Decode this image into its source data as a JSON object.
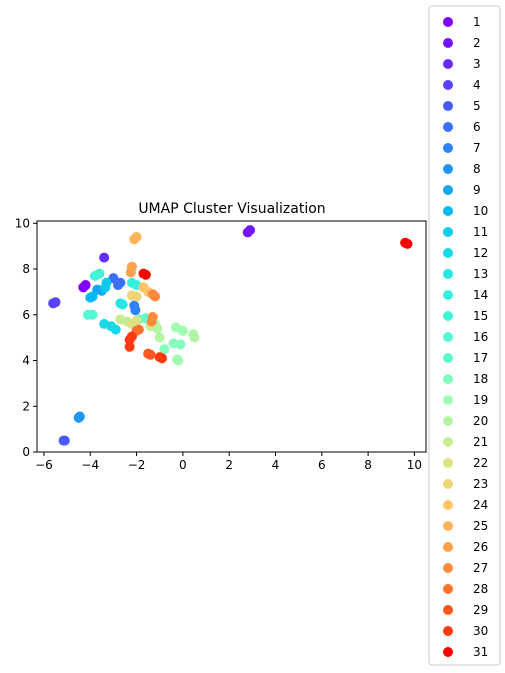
{
  "chart_data": {
    "type": "scatter",
    "title": "UMAP Cluster Visualization",
    "xlabel": "",
    "ylabel": "",
    "xlim": [
      -6.3,
      10.5
    ],
    "ylim": [
      0,
      10.1
    ],
    "xticks": [
      -6,
      -4,
      -2,
      0,
      2,
      4,
      6,
      8,
      10
    ],
    "yticks": [
      0,
      2,
      4,
      6,
      8,
      10
    ],
    "grid": false,
    "legend_placement": "right",
    "series": [
      {
        "name": "1",
        "color": "#8000ff",
        "points": [
          [
            -4.3,
            7.2
          ],
          [
            -4.2,
            7.3
          ]
        ]
      },
      {
        "name": "2",
        "color": "#7216ff",
        "points": [
          [
            2.8,
            9.6
          ],
          [
            2.9,
            9.7
          ]
        ]
      },
      {
        "name": "3",
        "color": "#642dfe",
        "points": [
          [
            -3.4,
            8.5
          ]
        ]
      },
      {
        "name": "4",
        "color": "#5643fd",
        "points": [
          [
            -5.6,
            6.5
          ],
          [
            -5.5,
            6.55
          ]
        ]
      },
      {
        "name": "5",
        "color": "#4859fc",
        "points": [
          [
            -5.15,
            0.5
          ],
          [
            -5.1,
            0.5
          ]
        ]
      },
      {
        "name": "6",
        "color": "#3a6ffa",
        "points": [
          [
            -3.0,
            7.6
          ],
          [
            -2.7,
            7.4
          ],
          [
            -2.8,
            7.3
          ]
        ]
      },
      {
        "name": "7",
        "color": "#2c83f8",
        "points": [
          [
            -2.1,
            6.4
          ],
          [
            -2.05,
            6.2
          ]
        ]
      },
      {
        "name": "8",
        "color": "#1e96f5",
        "points": [
          [
            -4.5,
            1.5
          ],
          [
            -4.45,
            1.55
          ]
        ]
      },
      {
        "name": "9",
        "color": "#10a8f2",
        "points": [
          [
            -3.7,
            7.1
          ],
          [
            -3.5,
            7.05
          ]
        ]
      },
      {
        "name": "10",
        "color": "#02baef",
        "points": [
          [
            -3.9,
            6.8
          ],
          [
            -4.0,
            6.75
          ]
        ]
      },
      {
        "name": "11",
        "color": "#0ccaeb",
        "points": [
          [
            -3.3,
            7.4
          ],
          [
            -3.35,
            7.2
          ]
        ]
      },
      {
        "name": "12",
        "color": "#1ad9e7",
        "points": [
          [
            -3.4,
            5.6
          ],
          [
            -3.1,
            5.5
          ],
          [
            -2.9,
            5.35
          ]
        ]
      },
      {
        "name": "13",
        "color": "#28e4e2",
        "points": [
          [
            -2.7,
            6.5
          ],
          [
            -2.6,
            6.45
          ]
        ]
      },
      {
        "name": "14",
        "color": "#36eedd",
        "points": [
          [
            -2.2,
            7.4
          ],
          [
            -2.0,
            7.3
          ]
        ]
      },
      {
        "name": "15",
        "color": "#44f4d7",
        "points": [
          [
            -3.8,
            7.7
          ],
          [
            -3.6,
            7.8
          ]
        ]
      },
      {
        "name": "16",
        "color": "#52f9d2",
        "points": [
          [
            -4.1,
            6.0
          ],
          [
            -3.9,
            6.0
          ]
        ]
      },
      {
        "name": "17",
        "color": "#60fdcc",
        "points": [
          [
            -1.9,
            5.8
          ],
          [
            -1.6,
            5.85
          ]
        ]
      },
      {
        "name": "18",
        "color": "#84ffbe",
        "points": [
          [
            -0.8,
            4.5
          ],
          [
            -0.4,
            4.75
          ],
          [
            -0.1,
            4.7
          ]
        ]
      },
      {
        "name": "19",
        "color": "#9ffcb0",
        "points": [
          [
            -0.3,
            5.45
          ],
          [
            0.0,
            5.3
          ],
          [
            -0.2,
            4.0
          ],
          [
            -0.25,
            4.05
          ]
        ]
      },
      {
        "name": "20",
        "color": "#b3f5a2",
        "points": [
          [
            -1.1,
            5.4
          ],
          [
            -1.2,
            5.6
          ],
          [
            -1.0,
            5.0
          ],
          [
            0.45,
            5.15
          ],
          [
            0.5,
            5.0
          ]
        ]
      },
      {
        "name": "21",
        "color": "#c8ec93",
        "points": [
          [
            -2.7,
            5.8
          ],
          [
            -2.4,
            5.7
          ],
          [
            -1.4,
            5.5
          ]
        ]
      },
      {
        "name": "22",
        "color": "#dbe285",
        "points": [
          [
            -2.2,
            5.6
          ],
          [
            -2.0,
            5.75
          ]
        ]
      },
      {
        "name": "23",
        "color": "#eed476",
        "points": [
          [
            -2.2,
            6.85
          ],
          [
            -2.0,
            6.8
          ]
        ]
      },
      {
        "name": "24",
        "color": "#ffc468",
        "points": [
          [
            -1.7,
            7.2
          ],
          [
            -1.5,
            7.0
          ]
        ]
      },
      {
        "name": "25",
        "color": "#ffb35a",
        "points": [
          [
            -2.1,
            9.3
          ],
          [
            -2.0,
            9.4
          ]
        ]
      },
      {
        "name": "26",
        "color": "#ff9e4b",
        "points": [
          [
            -2.2,
            8.1
          ],
          [
            -2.25,
            7.85
          ]
        ]
      },
      {
        "name": "27",
        "color": "#ff8a3c",
        "points": [
          [
            -1.3,
            6.9
          ],
          [
            -1.2,
            6.8
          ],
          [
            -1.3,
            5.9
          ],
          [
            -1.35,
            5.7
          ]
        ]
      },
      {
        "name": "28",
        "color": "#ff722e",
        "points": [
          [
            -1.9,
            5.35
          ],
          [
            -2.0,
            5.3
          ]
        ]
      },
      {
        "name": "29",
        "color": "#ff571f",
        "points": [
          [
            -1.4,
            4.25
          ],
          [
            -1.5,
            4.3
          ]
        ]
      },
      {
        "name": "30",
        "color": "#ff3a10",
        "points": [
          [
            -2.3,
            4.6
          ],
          [
            -2.3,
            4.9
          ],
          [
            -2.2,
            5.05
          ],
          [
            -0.9,
            4.1
          ],
          [
            -1.0,
            4.15
          ]
        ]
      },
      {
        "name": "31",
        "color": "#ff0000",
        "points": [
          [
            -1.7,
            7.8
          ],
          [
            -1.6,
            7.75
          ],
          [
            9.7,
            9.1
          ],
          [
            9.6,
            9.15
          ]
        ]
      }
    ]
  }
}
